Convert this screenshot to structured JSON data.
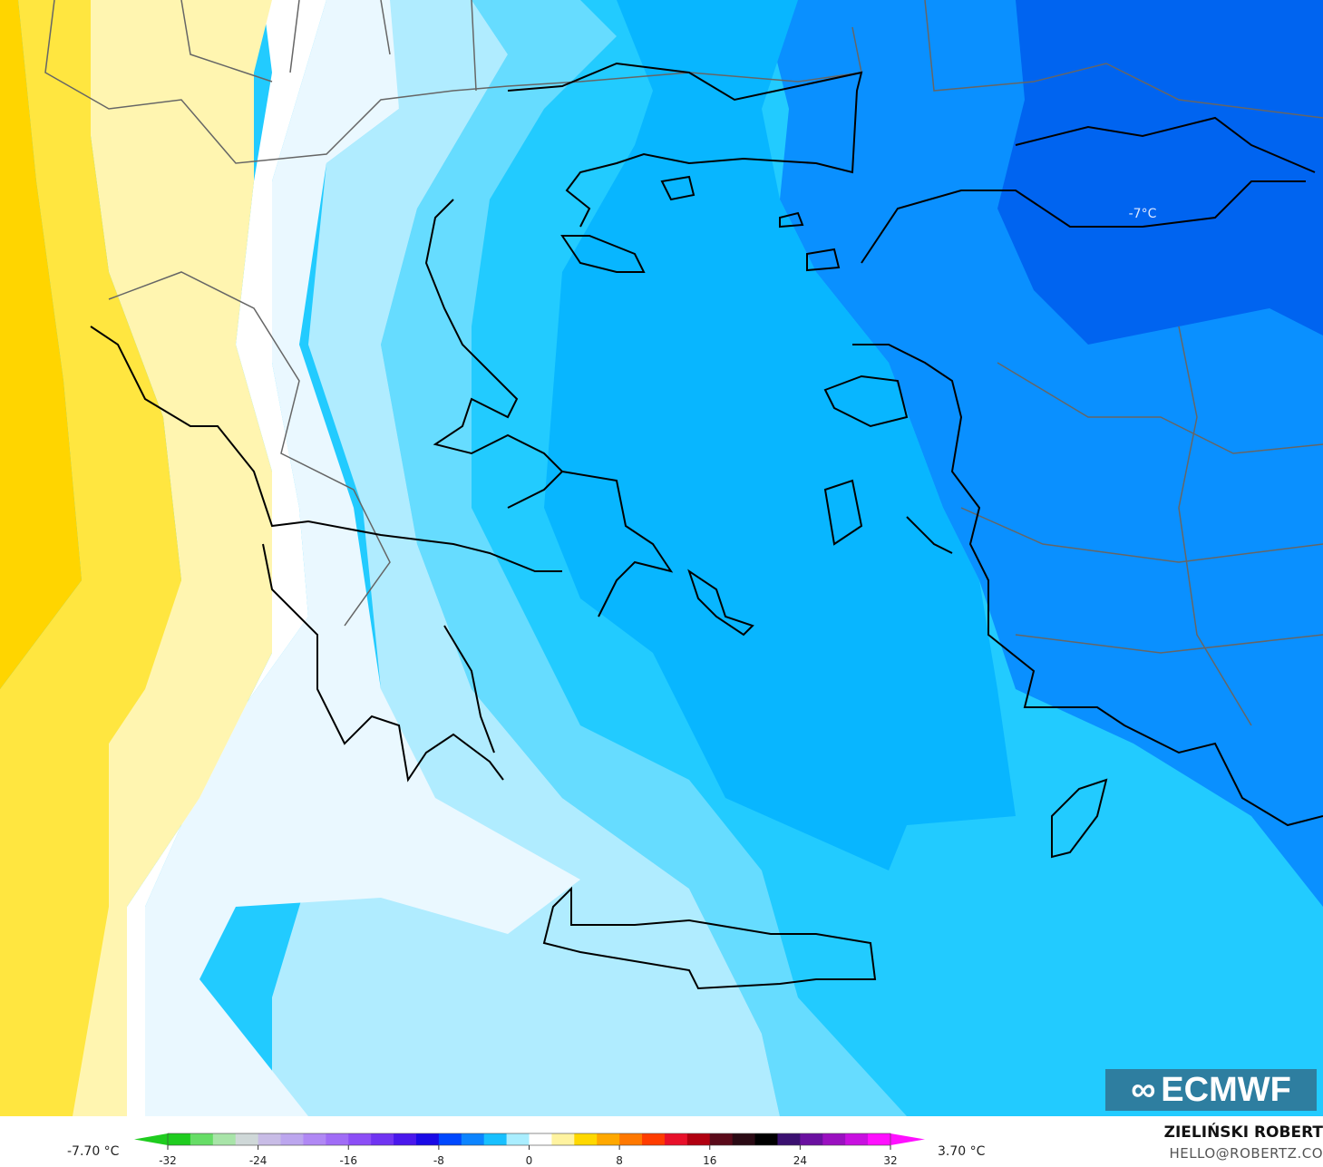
{
  "map": {
    "annotation": "-7°C",
    "contour_colors": [
      "#ffd500",
      "#ffe640",
      "#fff5b0",
      "#ffffff",
      "#eaf8ff",
      "#b0ecff",
      "#66dcff",
      "#22cbff",
      "#08b6ff",
      "#1890ff",
      "#0064f0"
    ],
    "coast_color": "#000000",
    "border_color": "#666666"
  },
  "colorbar": {
    "min_label": "-7.70 °C",
    "max_label": "3.70 °C",
    "ticks": [
      "-32",
      "-24",
      "-16",
      "-8",
      "0",
      "8",
      "16",
      "24",
      "32"
    ],
    "tick_values": [
      -32,
      -24,
      -16,
      -8,
      0,
      8,
      16,
      24,
      32
    ],
    "range": [
      -32,
      32
    ],
    "colors": [
      "#1fcc1f",
      "#66dd66",
      "#a8e4a8",
      "#cfd8d8",
      "#c8bce6",
      "#bca6ee",
      "#b088f4",
      "#a06cf6",
      "#8c4ef6",
      "#7034f2",
      "#4a18ec",
      "#1a0ae6",
      "#0048ff",
      "#0c84ff",
      "#18c0ff",
      "#aaeeff",
      "#ffffff",
      "#fff3a0",
      "#ffd800",
      "#ffa800",
      "#ff7800",
      "#ff3c00",
      "#e8102a",
      "#b00010",
      "#5a0a1a",
      "#2a0a14",
      "#000000",
      "#3a1070",
      "#6a10a0",
      "#9a10c0",
      "#c810e0",
      "#ff10ff"
    ]
  },
  "logo": "ECMWF",
  "credit": {
    "author": "ZIELIŃSKI ROBERT",
    "email": "HELLO@ROBERTZ.CO"
  }
}
